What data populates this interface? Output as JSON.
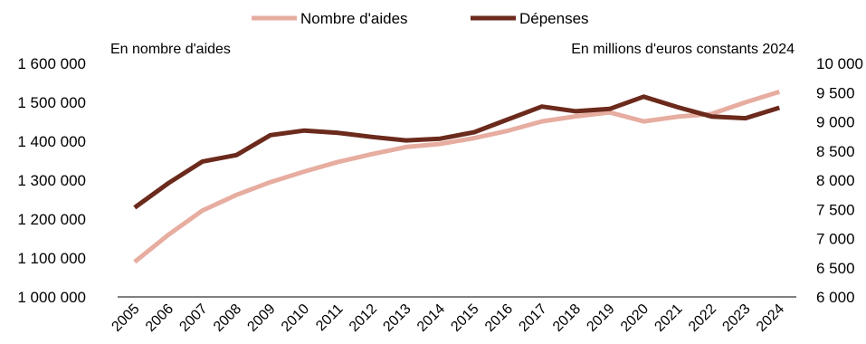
{
  "chart_data": {
    "type": "line",
    "title": "",
    "legend_position": "top",
    "grid": false,
    "left_axis": {
      "label": "En nombre d'aides",
      "range": [
        1000000,
        1600000
      ],
      "ticks": [
        "1 000 000",
        "1 100 000",
        "1 200 000",
        "1 300 000",
        "1 400 000",
        "1 500 000",
        "1 600 000"
      ]
    },
    "right_axis": {
      "label": "En millions d'euros constants 2024",
      "range": [
        6000,
        10000
      ],
      "ticks": [
        "6 000",
        "6 500",
        "7 000",
        "7 500",
        "8 000",
        "8 500",
        "9 000",
        "9 500",
        "10 000"
      ]
    },
    "x": [
      "2005",
      "2006",
      "2007",
      "2008",
      "2009",
      "2010",
      "2011",
      "2012",
      "2013",
      "2014",
      "2015",
      "2016",
      "2017",
      "2018",
      "2019",
      "2020",
      "2021",
      "2022",
      "2023",
      "2024"
    ],
    "series": [
      {
        "name": "Nombre d'aides",
        "axis": "left",
        "color": "#e6ada0",
        "values": [
          1090000,
          1160000,
          1222000,
          1262000,
          1295000,
          1322000,
          1347000,
          1367000,
          1385000,
          1393000,
          1408000,
          1427000,
          1451000,
          1464000,
          1474000,
          1451000,
          1463000,
          1470000,
          1500000,
          1527000
        ]
      },
      {
        "name": "Dépenses",
        "axis": "right",
        "color": "#6b2a1c",
        "values": [
          7530,
          7950,
          8320,
          8430,
          8770,
          8850,
          8810,
          8740,
          8680,
          8710,
          8820,
          9040,
          9260,
          9180,
          9220,
          9430,
          9250,
          9090,
          9060,
          9240
        ]
      }
    ]
  }
}
